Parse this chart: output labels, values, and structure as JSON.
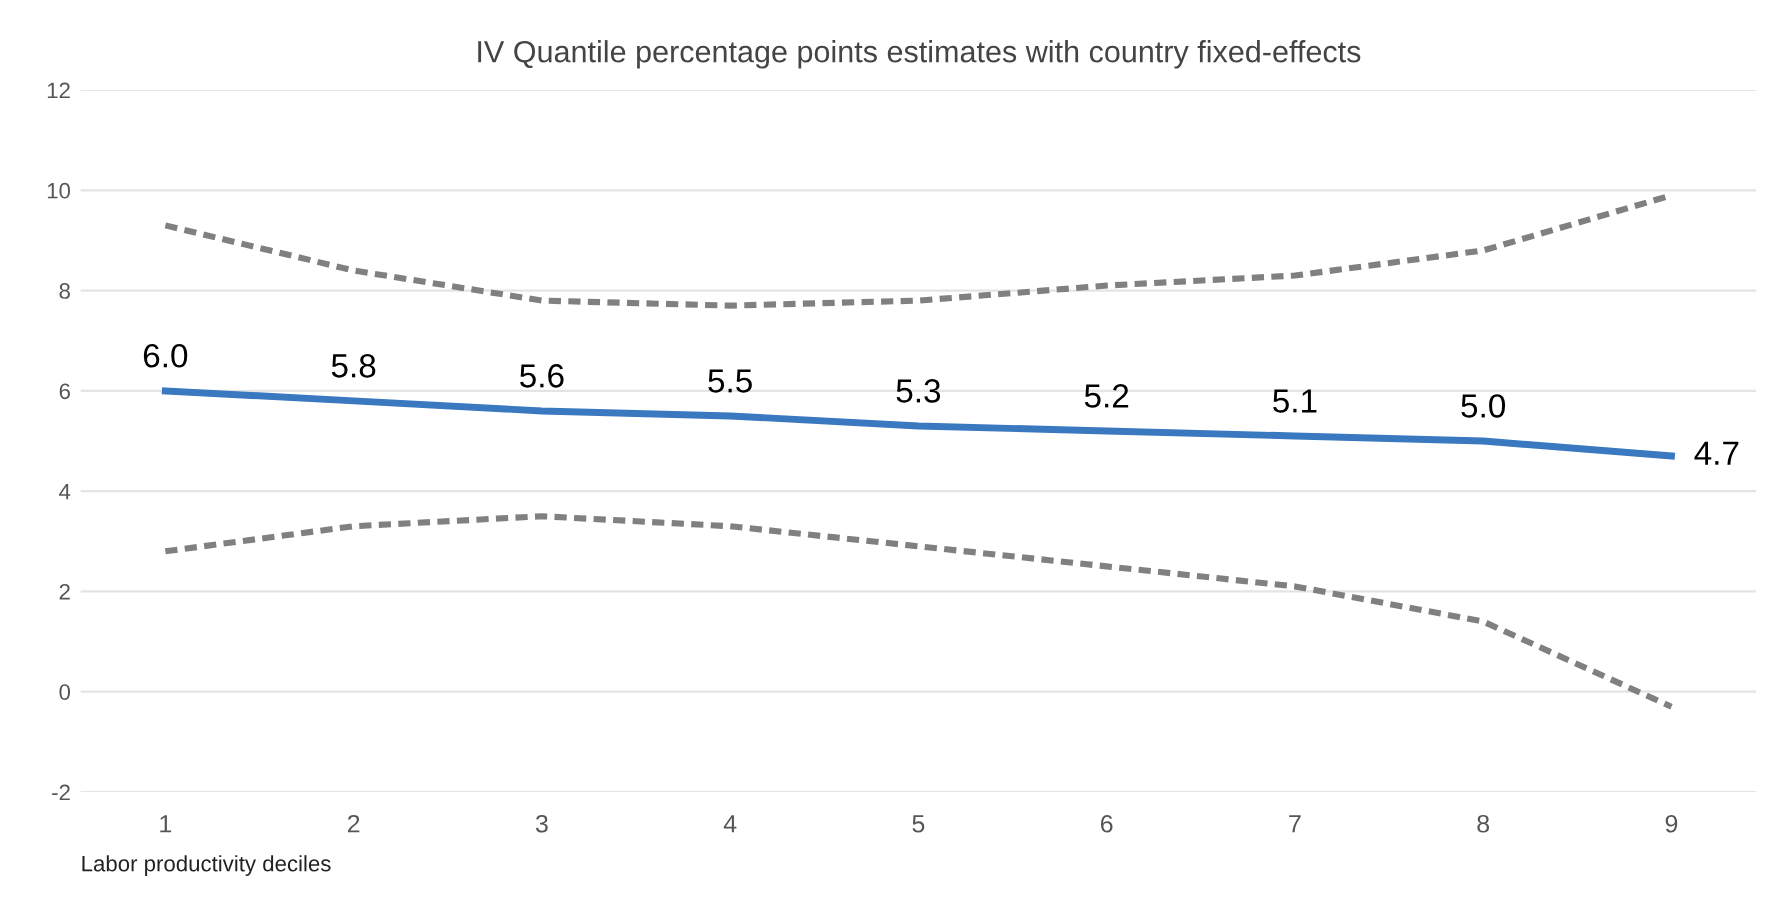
{
  "chart_data": {
    "type": "line",
    "title": "IV Quantile percentage points estimates with country fixed-effects",
    "xlabel": "Labor productivity deciles",
    "categories": [
      "1",
      "2",
      "3",
      "4",
      "5",
      "6",
      "7",
      "8",
      "9"
    ],
    "series": [
      {
        "color": "#3a78c0",
        "values": [
          6.0,
          5.8,
          5.6,
          5.5,
          5.3,
          5.2,
          5.1,
          5.0,
          4.7
        ],
        "value_labels": [
          "6.0",
          "5.8",
          "5.6",
          "5.5",
          "5.3",
          "5.2",
          "5.1",
          "5.0",
          "4.7"
        ]
      },
      {
        "color": "#808080",
        "line_style": "dashed",
        "values": [
          9.3,
          8.4,
          7.8,
          7.7,
          7.8,
          8.1,
          8.3,
          8.8,
          9.9
        ]
      },
      {
        "color": "#808080",
        "line_style": "dashed",
        "values": [
          2.8,
          3.3,
          3.5,
          3.3,
          2.9,
          2.5,
          2.1,
          1.4,
          -0.3
        ]
      }
    ],
    "ylim": [
      -2,
      12
    ],
    "yticks": [
      -2,
      0,
      2,
      4,
      6,
      8,
      10,
      12
    ],
    "grid": "y",
    "marker": "none"
  }
}
